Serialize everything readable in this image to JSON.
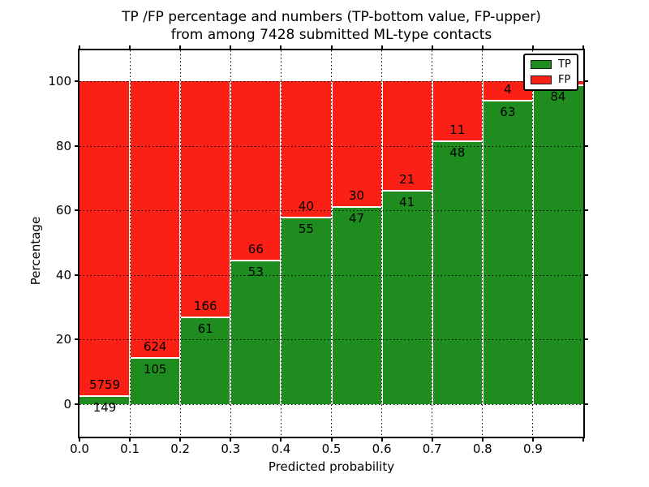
{
  "title": {
    "line1": "TP /FP percentage and numbers (TP-bottom value, FP-upper)",
    "line2": "from among 7428 submitted ML-type contacts"
  },
  "chart_data": {
    "type": "bar",
    "stacked": true,
    "title": "TP /FP percentage and numbers (TP-bottom value, FP-upper)\nfrom among 7428 submitted ML-type contacts",
    "xlabel": "Predicted probability",
    "ylabel": "Percentage",
    "xlim": [
      0.0,
      1.0
    ],
    "ylim": [
      -10,
      110
    ],
    "grid": "dotted",
    "legend_position": "upper right",
    "total_contacts": 7428,
    "bin_width": 0.1,
    "x_tick_labels": [
      "0.0",
      "0.1",
      "0.2",
      "0.3",
      "0.4",
      "0.5",
      "0.6",
      "0.7",
      "0.8",
      "0.9"
    ],
    "y_tick_labels": [
      {
        "label": "0",
        "value": 0
      },
      {
        "label": "20",
        "value": 20
      },
      {
        "label": "40",
        "value": 40
      },
      {
        "label": "60",
        "value": 60
      },
      {
        "label": "80",
        "value": 80
      },
      {
        "label": "100",
        "value": 100
      }
    ],
    "series": [
      {
        "name": "TP",
        "color": "#1f8c1f"
      },
      {
        "name": "FP",
        "color": "#fb2015"
      }
    ],
    "bins": [
      {
        "x_start": 0.0,
        "tp_count": 149,
        "fp_count": 5759,
        "tp_pct": 2.5
      },
      {
        "x_start": 0.1,
        "tp_count": 105,
        "fp_count": 624,
        "tp_pct": 14.4
      },
      {
        "x_start": 0.2,
        "tp_count": 61,
        "fp_count": 166,
        "tp_pct": 26.9
      },
      {
        "x_start": 0.3,
        "tp_count": 53,
        "fp_count": 66,
        "tp_pct": 44.5
      },
      {
        "x_start": 0.4,
        "tp_count": 55,
        "fp_count": 40,
        "tp_pct": 57.9
      },
      {
        "x_start": 0.5,
        "tp_count": 47,
        "fp_count": 30,
        "tp_pct": 61.0
      },
      {
        "x_start": 0.6,
        "tp_count": 41,
        "fp_count": 21,
        "tp_pct": 66.1
      },
      {
        "x_start": 0.7,
        "tp_count": 48,
        "fp_count": 11,
        "tp_pct": 81.4
      },
      {
        "x_start": 0.8,
        "tp_count": 63,
        "fp_count": 4,
        "tp_pct": 94.0
      },
      {
        "x_start": 0.9,
        "tp_count": 84,
        "fp_count": null,
        "tp_pct": 98.8
      }
    ]
  }
}
